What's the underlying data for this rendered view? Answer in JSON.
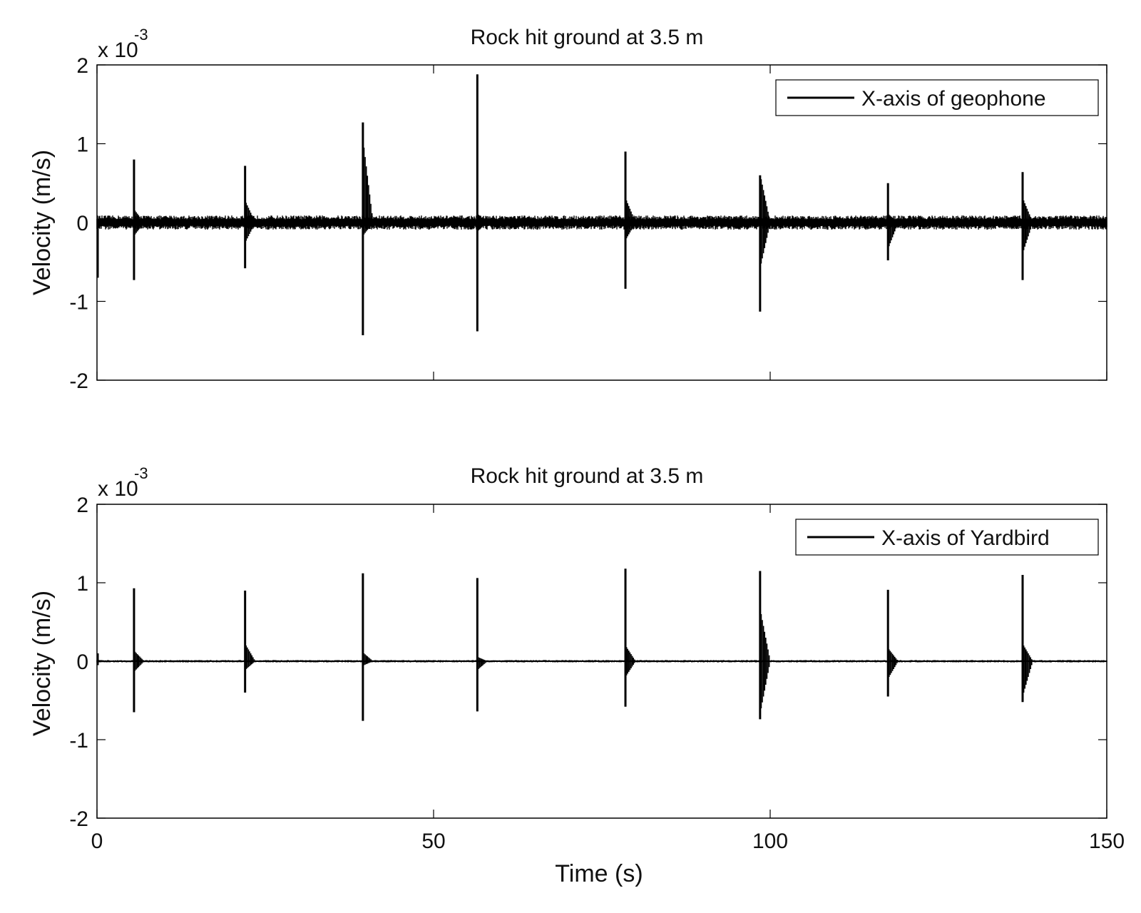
{
  "chart_data": [
    {
      "type": "line",
      "title": "Rock hit ground at 3.5 m",
      "xlabel": "",
      "ylabel": "Velocity (m/s)",
      "y_multiplier": "x 10",
      "y_exponent": "-3",
      "xlim": [
        0,
        150
      ],
      "ylim": [
        -2,
        2
      ],
      "x_ticks": [
        0,
        50,
        100,
        150
      ],
      "x_tick_labels": [
        "",
        "",
        "",
        ""
      ],
      "y_ticks": [
        2,
        1,
        0,
        -1,
        -2
      ],
      "y_tick_labels": [
        "2",
        "1",
        "0",
        "-1",
        "-2"
      ],
      "legend": {
        "label": "X-axis of geophone",
        "position": "top-right"
      },
      "noise_amplitude": 0.09,
      "series": [
        {
          "name": "X-axis of geophone",
          "color": "#000000",
          "events": [
            {
              "t": 0.0,
              "max": 0.05,
              "min": -0.7
            },
            {
              "t": 5.5,
              "max": 0.8,
              "min": -0.73,
              "after": [
                0.15,
                -0.15
              ]
            },
            {
              "t": 22.0,
              "max": 0.72,
              "min": -0.58,
              "after": [
                0.25,
                -0.23
              ]
            },
            {
              "t": 39.5,
              "max": 1.27,
              "min": -1.43,
              "after": [
                0.95,
                -0.15
              ]
            },
            {
              "t": 56.5,
              "max": 1.88,
              "min": -1.38,
              "after": [
                0.1,
                -0.1
              ]
            },
            {
              "t": 78.5,
              "max": 0.9,
              "min": -0.84,
              "after": [
                0.28,
                -0.2
              ]
            },
            {
              "t": 98.5,
              "max": 0.6,
              "min": -1.13,
              "after": [
                0.55,
                -0.52
              ]
            },
            {
              "t": 117.5,
              "max": 0.5,
              "min": -0.48,
              "after": [
                0.1,
                -0.3
              ]
            },
            {
              "t": 137.5,
              "max": 0.64,
              "min": -0.73,
              "after": [
                0.28,
                -0.35
              ]
            }
          ]
        }
      ]
    },
    {
      "type": "line",
      "title": "Rock hit ground at 3.5 m",
      "xlabel": "Time (s)",
      "ylabel": "Velocity (m/s)",
      "y_multiplier": "x 10",
      "y_exponent": "-3",
      "xlim": [
        0,
        150
      ],
      "ylim": [
        -2,
        2
      ],
      "x_ticks": [
        0,
        50,
        100,
        150
      ],
      "x_tick_labels": [
        "0",
        "50",
        "100",
        "150"
      ],
      "y_ticks": [
        2,
        1,
        0,
        -1,
        -2
      ],
      "y_tick_labels": [
        "2",
        "1",
        "0",
        "-1",
        "-2"
      ],
      "legend": {
        "label": "X-axis of Yardbird",
        "position": "top-right"
      },
      "noise_amplitude": 0.015,
      "series": [
        {
          "name": "X-axis of Yardbird",
          "color": "#000000",
          "events": [
            {
              "t": 0.0,
              "max": 0.1,
              "min": -0.05
            },
            {
              "t": 5.5,
              "max": 0.93,
              "min": -0.65,
              "after": [
                0.12,
                -0.12
              ]
            },
            {
              "t": 22.0,
              "max": 0.9,
              "min": -0.4,
              "after": [
                0.2,
                -0.1
              ]
            },
            {
              "t": 39.5,
              "max": 1.12,
              "min": -0.76,
              "after": [
                0.1,
                -0.05
              ]
            },
            {
              "t": 56.5,
              "max": 1.06,
              "min": -0.64,
              "after": [
                0.05,
                -0.1
              ]
            },
            {
              "t": 78.5,
              "max": 1.18,
              "min": -0.58,
              "after": [
                0.18,
                -0.18
              ]
            },
            {
              "t": 98.5,
              "max": 1.15,
              "min": -0.74,
              "after": [
                0.6,
                -0.6
              ]
            },
            {
              "t": 117.5,
              "max": 0.91,
              "min": -0.45,
              "after": [
                0.15,
                -0.2
              ]
            },
            {
              "t": 137.5,
              "max": 1.1,
              "min": -0.52,
              "after": [
                0.2,
                -0.4
              ]
            }
          ]
        }
      ]
    }
  ]
}
